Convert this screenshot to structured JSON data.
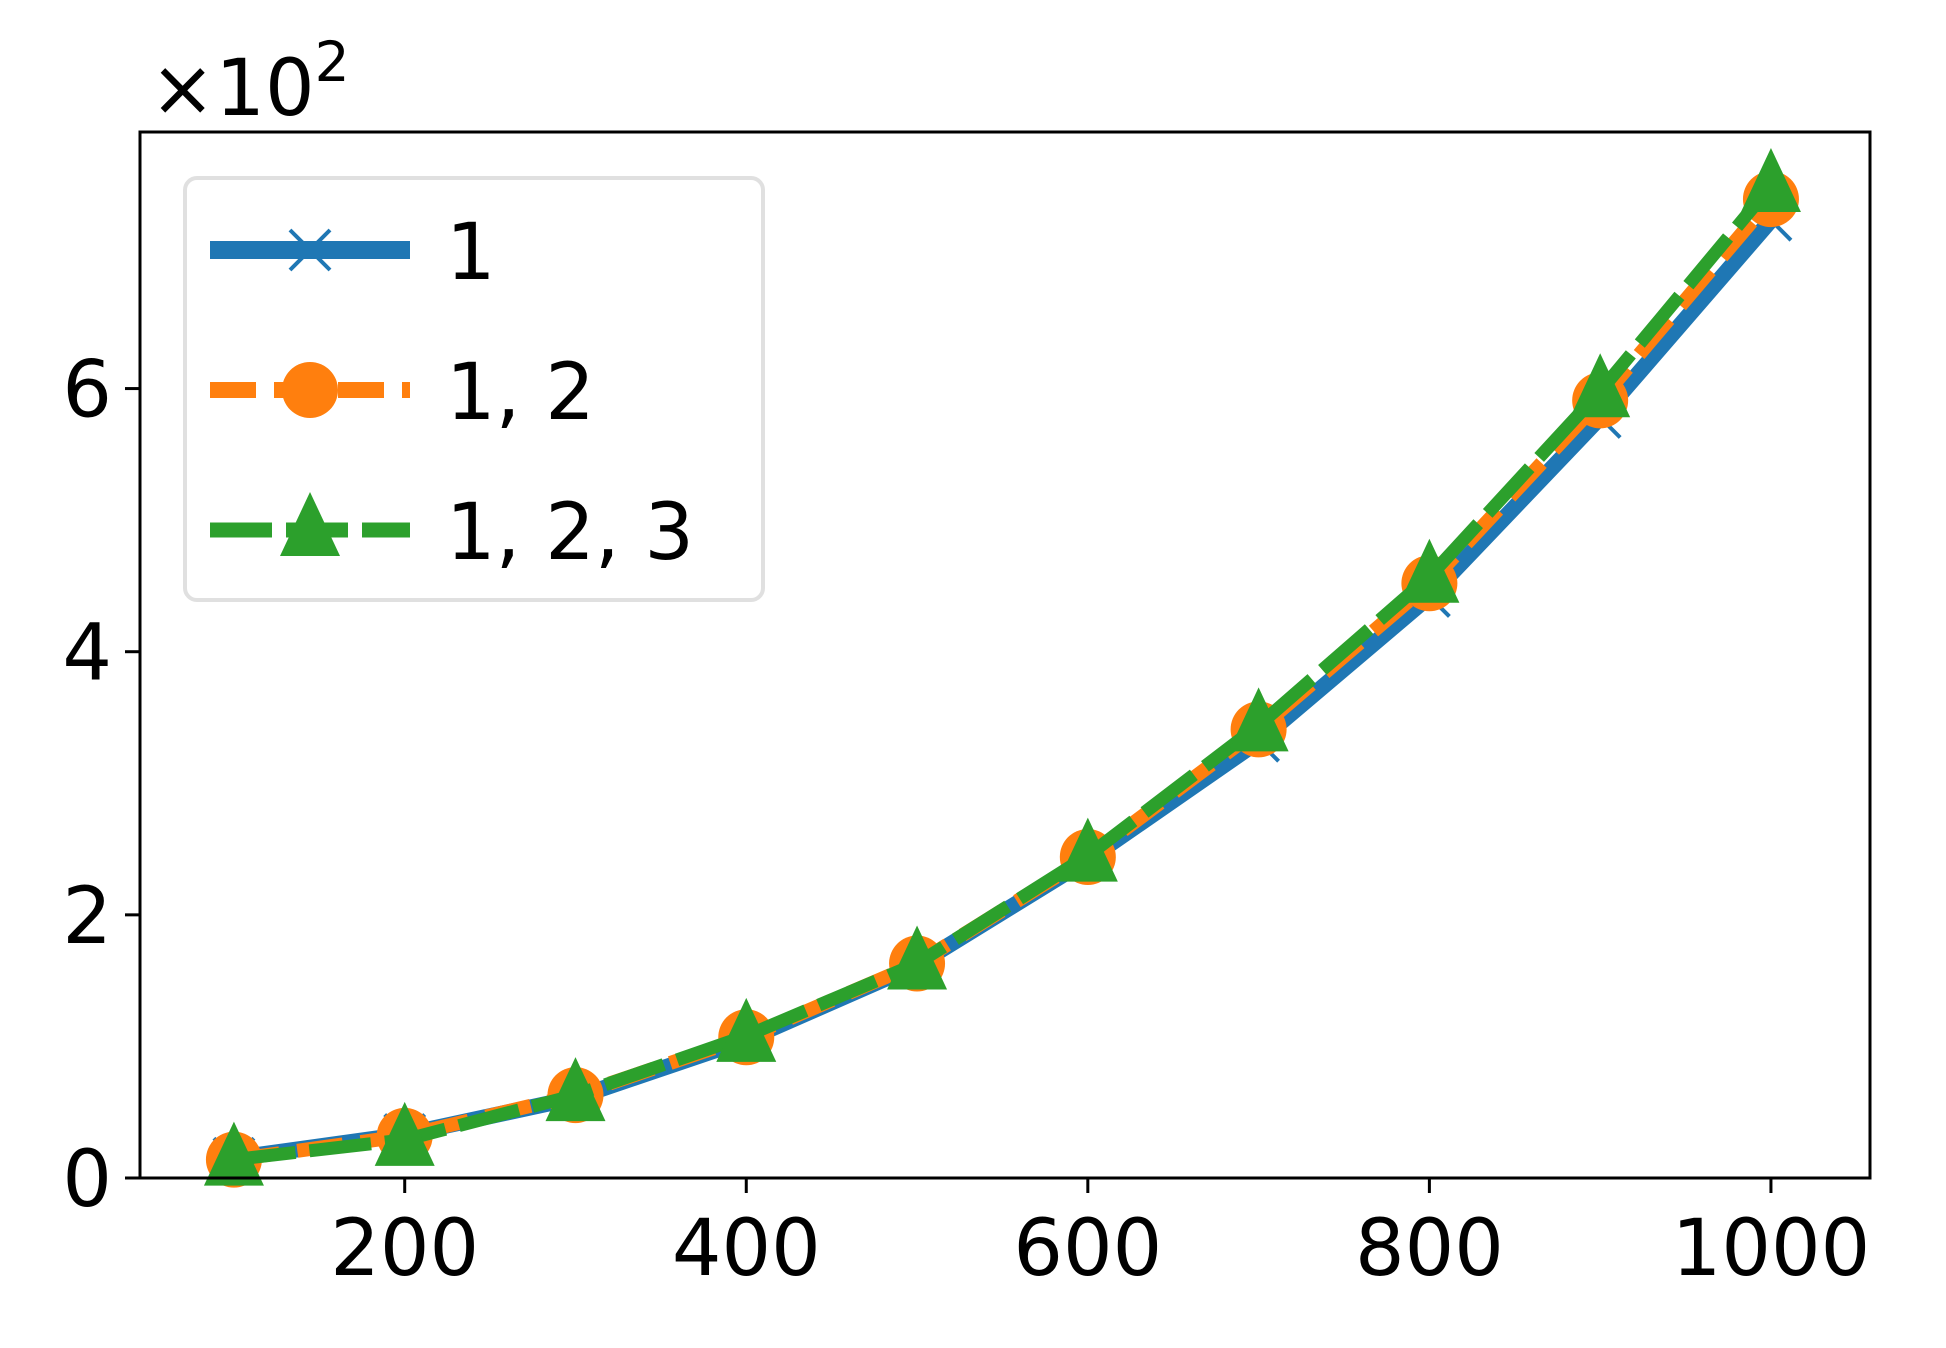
{
  "chart_data": {
    "type": "line",
    "title": "",
    "xlabel": "",
    "ylabel": "",
    "y_scale_label": {
      "prefix": "×10",
      "exponent": "2"
    },
    "x": [
      100,
      200,
      300,
      400,
      500,
      600,
      700,
      800,
      900,
      1000
    ],
    "xlim": [
      45,
      1058
    ],
    "ylim": [
      0,
      7.95
    ],
    "xticks": [
      "200",
      "400",
      "600",
      "800",
      "1000"
    ],
    "xtick_values": [
      200,
      400,
      600,
      800,
      1000
    ],
    "yticks": [
      "0",
      "2",
      "4",
      "6"
    ],
    "ytick_values": [
      0,
      2,
      4,
      6
    ],
    "grid": false,
    "legend_position": "upper-left",
    "series": [
      {
        "name": "1",
        "color": "#1f77b4",
        "marker": "x",
        "linestyle": "solid",
        "values": [
          0.15,
          0.33,
          0.61,
          1.05,
          1.62,
          2.42,
          3.32,
          4.42,
          5.78,
          7.28
        ]
      },
      {
        "name": "1, 2",
        "color": "#ff7f0e",
        "marker": "circle",
        "linestyle": "dashed",
        "values": [
          0.14,
          0.32,
          0.63,
          1.07,
          1.63,
          2.44,
          3.41,
          4.52,
          5.91,
          7.44
        ]
      },
      {
        "name": "1, 2, 3",
        "color": "#2ca02c",
        "marker": "triangle",
        "linestyle": "dashed",
        "values": [
          0.14,
          0.29,
          0.63,
          1.08,
          1.63,
          2.45,
          3.44,
          4.57,
          5.98,
          7.54
        ]
      }
    ]
  }
}
